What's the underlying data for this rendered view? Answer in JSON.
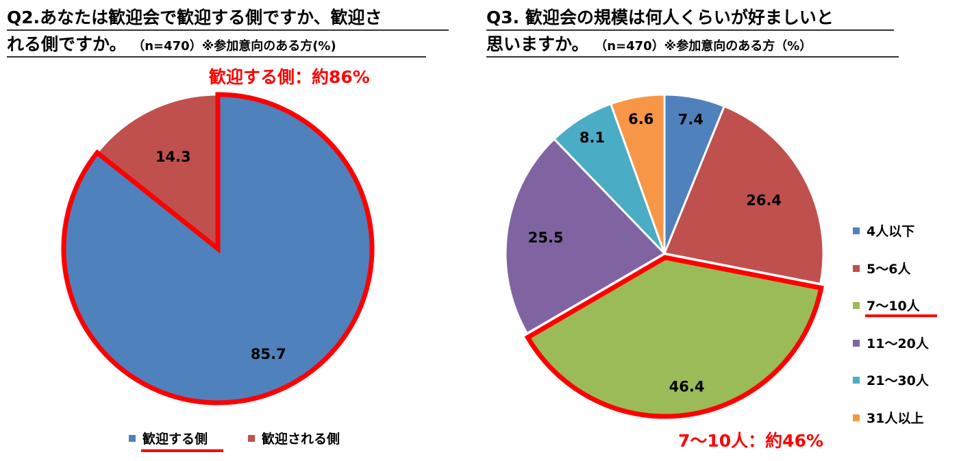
{
  "colors": {
    "blue": "#4f81bd",
    "red": "#c0504d",
    "green": "#9bbb59",
    "purple": "#8064a2",
    "teal": "#4bacc6",
    "orange": "#f79646",
    "highlight": "#ff0000"
  },
  "chart_data": [
    {
      "type": "pie",
      "title": "Q2.あなたは歓迎会で歓迎する側ですか、歓迎される側ですか。",
      "note": "（n=470）※参加意向のある方(%)",
      "callout": "歓迎する側：約86%",
      "slices": [
        {
          "label": "歓迎する側",
          "value": 85.7,
          "display": "85.7",
          "color": "#4f81bd",
          "highlight": true
        },
        {
          "label": "歓迎される側",
          "value": 14.3,
          "display": "14.3",
          "color": "#c0504d",
          "highlight": false
        }
      ],
      "legend_position": "bottom"
    },
    {
      "type": "pie",
      "title": "Q3. 歓迎会の規模は何人くらいが好ましいと思いますか。",
      "note": "（n=470）※参加意向のある方（%）",
      "callout": "7〜10人：約46%",
      "slices": [
        {
          "label": "4人以下",
          "value": 7.4,
          "display": "7.4",
          "color": "#4f81bd",
          "highlight": false
        },
        {
          "label": "5〜6人",
          "value": 26.4,
          "display": "26.4",
          "color": "#c0504d",
          "highlight": false
        },
        {
          "label": "7〜10人",
          "value": 46.4,
          "display": "46.4",
          "color": "#9bbb59",
          "highlight": true
        },
        {
          "label": "11〜20人",
          "value": 25.5,
          "display": "25.5",
          "color": "#8064a2",
          "highlight": false
        },
        {
          "label": "21〜30人",
          "value": 8.1,
          "display": "8.1",
          "color": "#4bacc6",
          "highlight": false
        },
        {
          "label": "31人以上",
          "value": 6.6,
          "display": "6.6",
          "color": "#f79646",
          "highlight": false
        }
      ],
      "legend_position": "right"
    }
  ],
  "left": {
    "title_line1": "Q2.あなたは歓迎会で歓迎する側ですか、歓迎さ",
    "title_line2": "れる側ですか。",
    "note": "（n=470）※参加意向のある方(%)",
    "callout": "歓迎する側：約86%",
    "legend": [
      "歓迎する側",
      "歓迎される側"
    ]
  },
  "right": {
    "title_line1": "Q3. 歓迎会の規模は何人くらいが好ましいと",
    "title_line2": "思いますか。",
    "note": "（n=470）※参加意向のある方（%）",
    "callout": "7〜10人：約46%",
    "legend": [
      "4人以下",
      "5〜6人",
      "7〜10人",
      "11〜20人",
      "21〜30人",
      "31人以上"
    ]
  }
}
